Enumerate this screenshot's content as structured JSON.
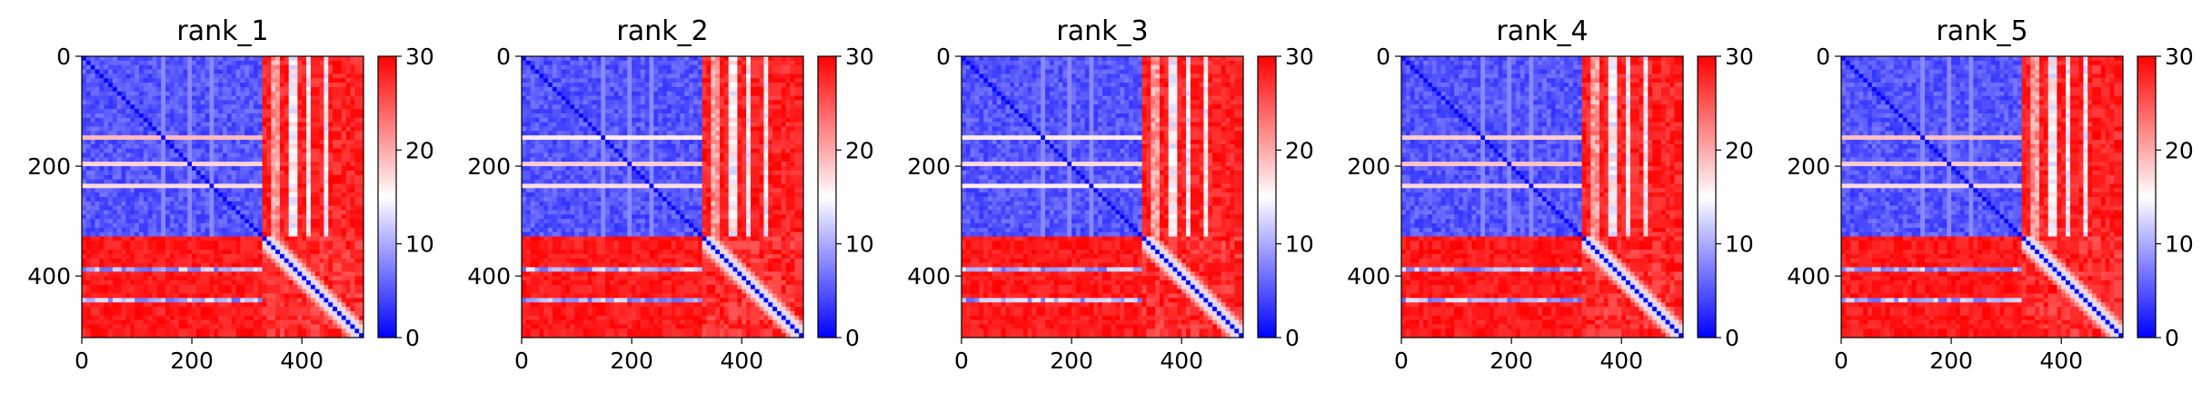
{
  "chart_data": {
    "type": "heatmap",
    "image_size": [
      512,
      512
    ],
    "xlim": [
      0,
      512
    ],
    "ylim": [
      512,
      0
    ],
    "x_ticks": [
      0,
      200,
      400
    ],
    "y_ticks": [
      0,
      200,
      400
    ],
    "colorbar": {
      "range": [
        0,
        30
      ],
      "ticks": [
        0,
        10,
        20,
        30
      ],
      "colors": {
        "low": "#0000ff",
        "mid": "#ffffff",
        "high": "#ff0000"
      }
    },
    "structure": {
      "domain_1_end": 325,
      "domain_2_end": 512,
      "stripes_x": [
        385,
        410,
        445
      ],
      "stripes_y": [
        150,
        195,
        235
      ],
      "rows_lower": [
        385,
        400,
        445
      ]
    },
    "panels": [
      {
        "title": "rank_1"
      },
      {
        "title": "rank_2"
      },
      {
        "title": "rank_3"
      },
      {
        "title": "rank_4"
      },
      {
        "title": "rank_5"
      }
    ]
  }
}
